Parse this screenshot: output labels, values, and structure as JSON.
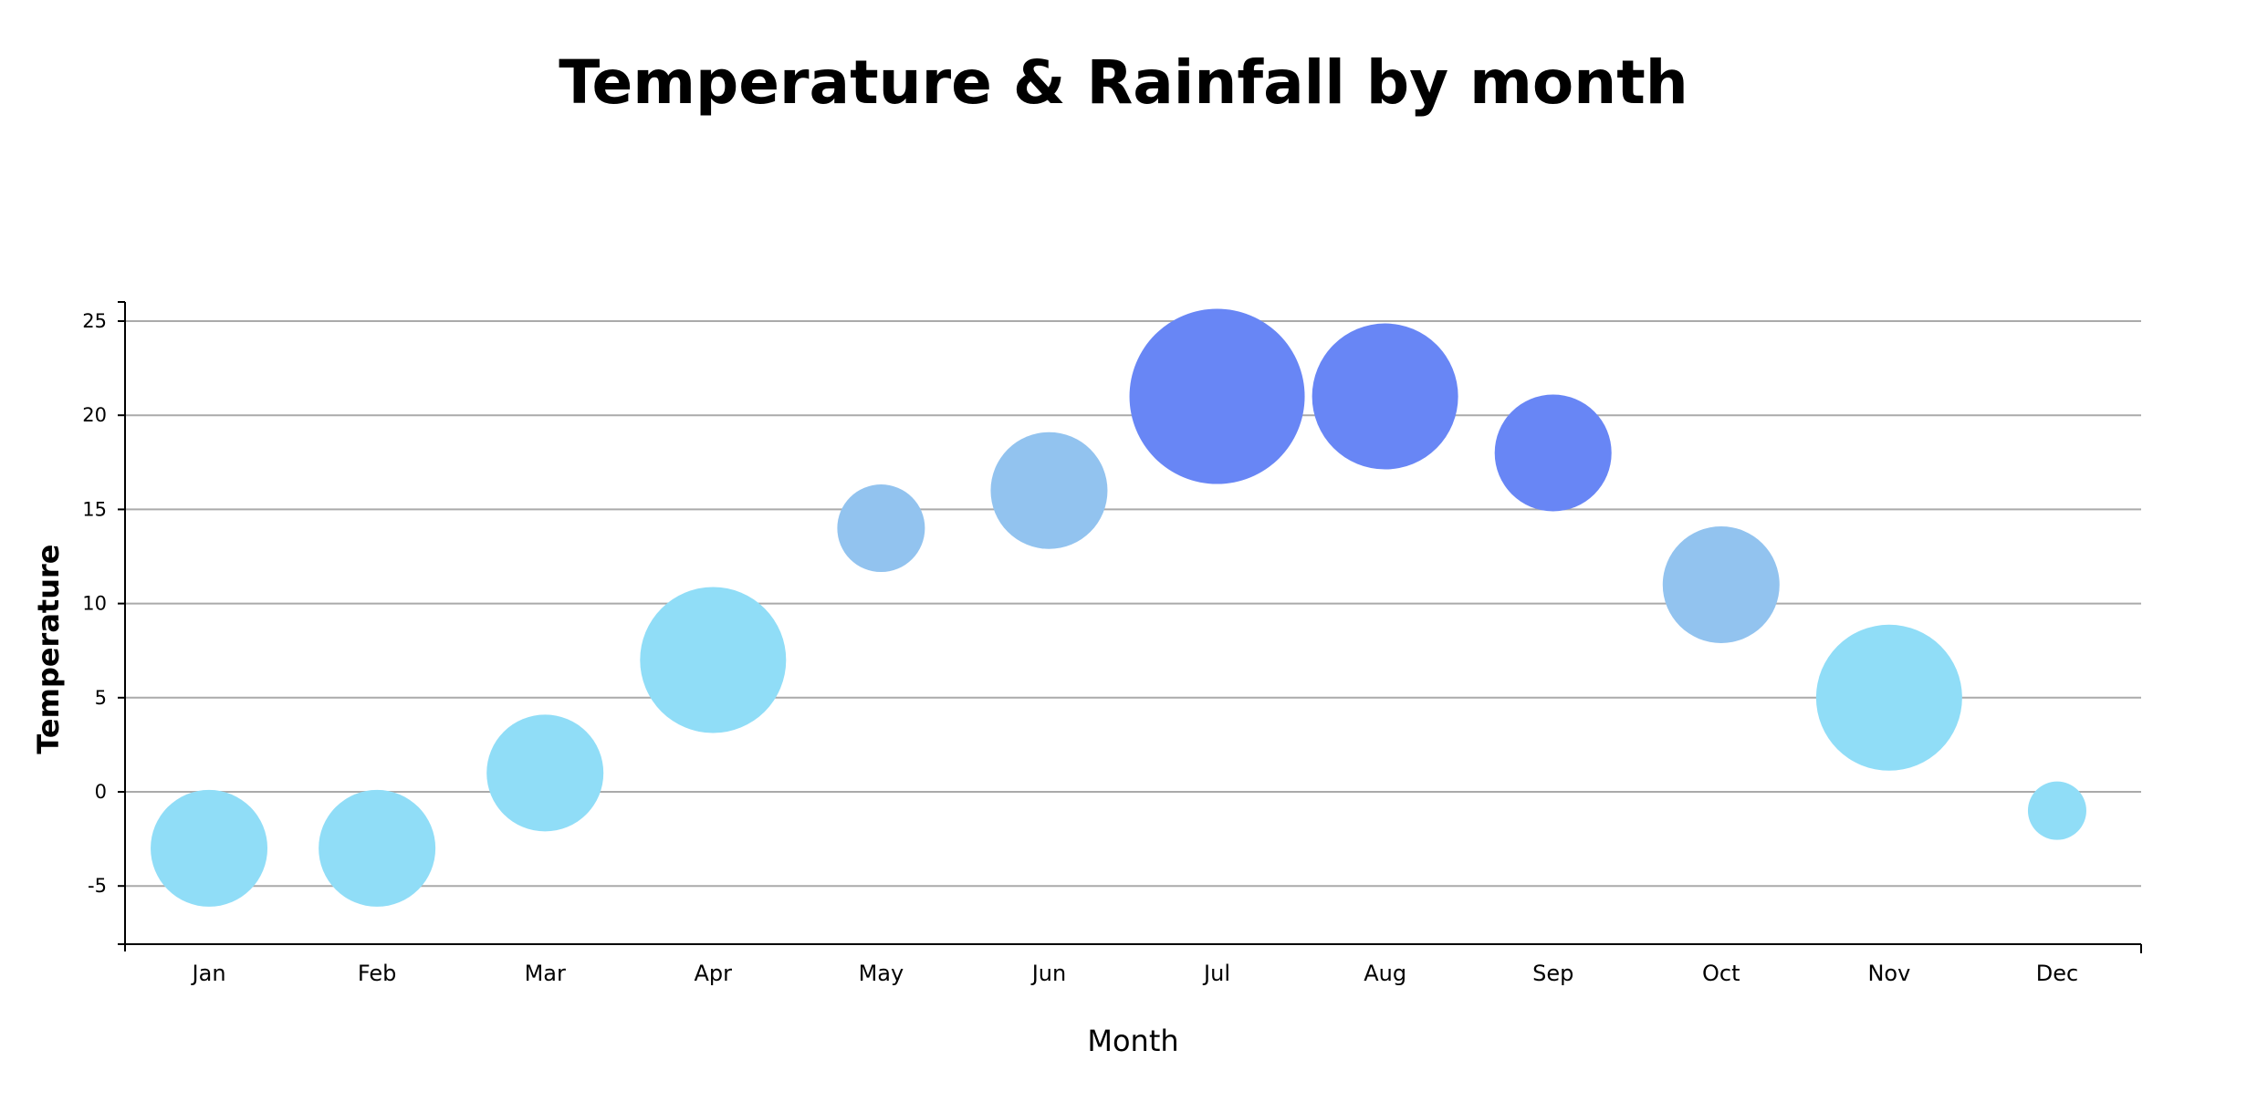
{
  "chart_data": {
    "type": "scatter",
    "title": "Temperature & Rainfall by month",
    "xlabel": "Month",
    "ylabel": "Temperature",
    "categories": [
      "Jan",
      "Feb",
      "Mar",
      "Apr",
      "May",
      "Jun",
      "Jul",
      "Aug",
      "Sep",
      "Oct",
      "Nov",
      "Dec"
    ],
    "y_ticks": [
      25,
      20,
      15,
      10,
      5,
      0,
      -5
    ],
    "ylim": [
      -8,
      26
    ],
    "grid": true,
    "legend": "none",
    "series": [
      {
        "values": [
          -3,
          -3,
          1,
          7,
          14,
          16,
          21,
          21,
          18,
          11,
          5,
          -1
        ],
        "bubble_size": [
          64,
          64,
          64,
          80,
          48,
          64,
          96,
          80,
          64,
          64,
          80,
          32
        ],
        "colors": [
          "#90ddf7",
          "#90ddf7",
          "#90ddf7",
          "#90ddf7",
          "#92c3ef",
          "#92c3ef",
          "#6886f5",
          "#6886f5",
          "#6886f5",
          "#92c3ef",
          "#90ddf7",
          "#90ddf7"
        ]
      }
    ]
  }
}
